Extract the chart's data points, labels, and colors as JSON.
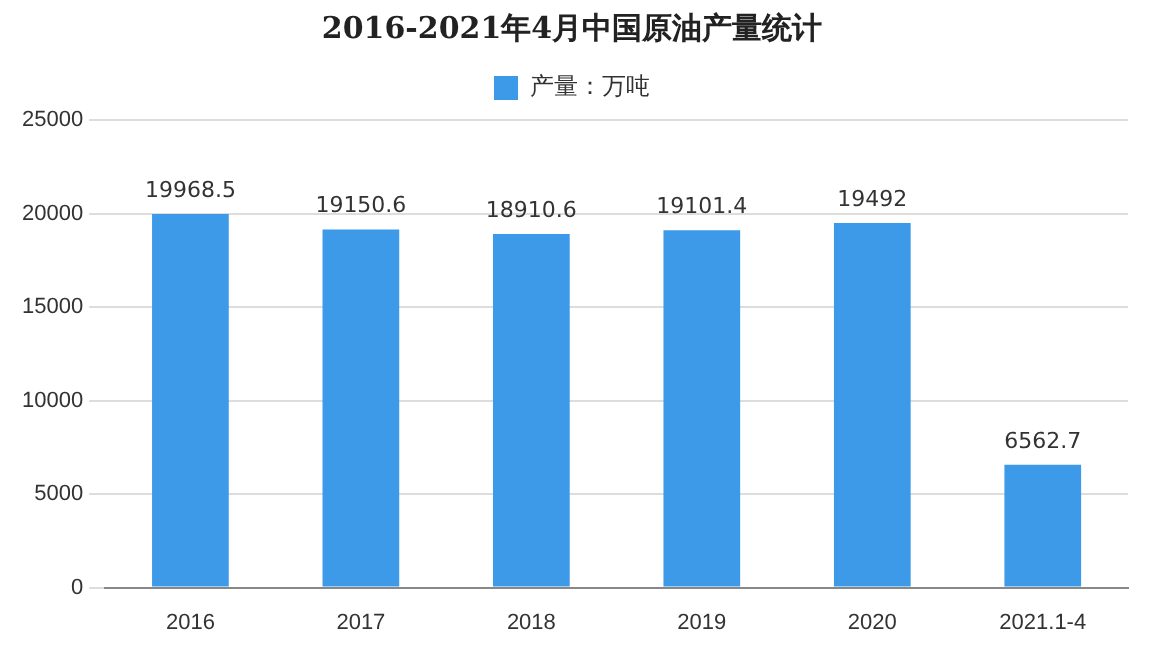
{
  "chart_data": {
    "type": "bar",
    "title": "2016-2021年4月中国原油产量统计",
    "categories": [
      "2016",
      "2017",
      "2018",
      "2019",
      "2020",
      "2021.1-4"
    ],
    "series": [
      {
        "name": "产量：万吨",
        "color": "#3d9ae8",
        "values": [
          19968.5,
          19150.6,
          18910.6,
          19101.4,
          19492,
          6562.7
        ]
      }
    ],
    "ylim": [
      0,
      25000
    ],
    "yticks": [
      0,
      5000,
      10000,
      15000,
      20000,
      25000
    ],
    "grid": "y",
    "legend": "top",
    "data_labels": true
  }
}
